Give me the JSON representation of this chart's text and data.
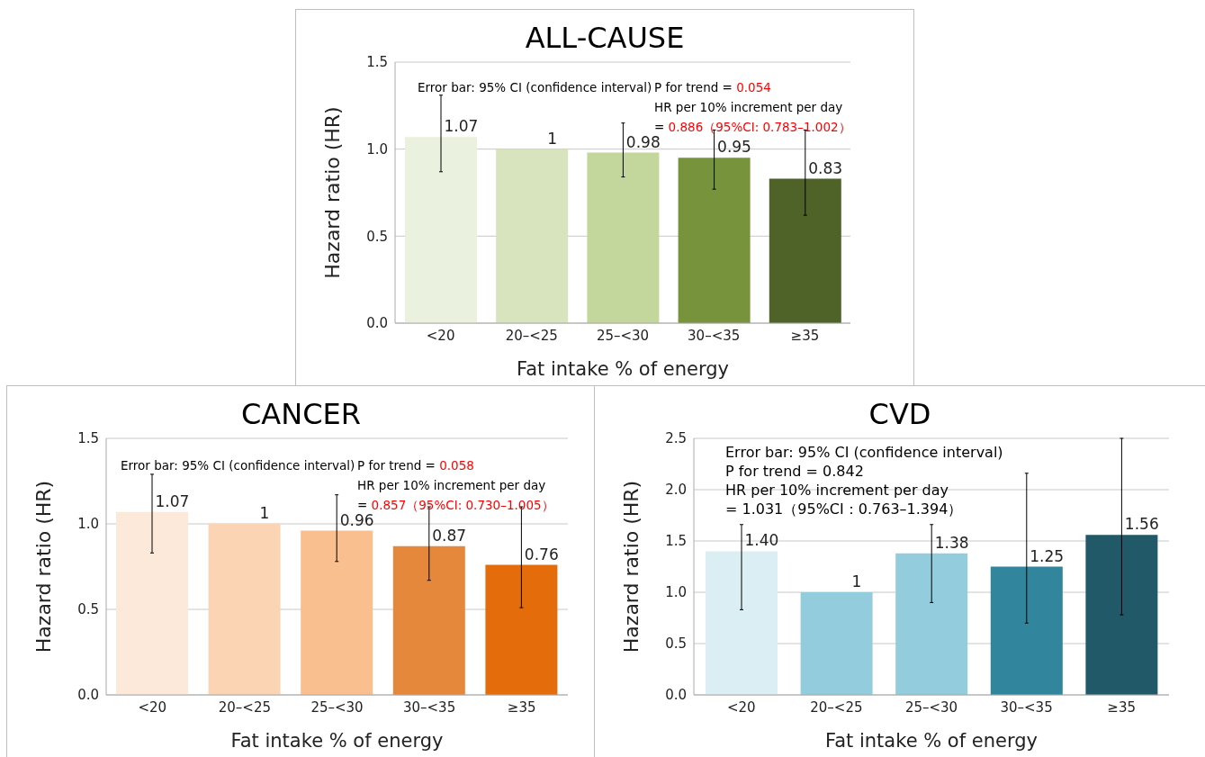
{
  "chart_data": [
    {
      "type": "bar",
      "title": "ALL-CAUSE",
      "xlabel": "Fat intake % of energy",
      "ylabel": "Hazard ratio (HR)",
      "categories": [
        "<20",
        "20–<25",
        "25–<30",
        "30–<35",
        "≥35"
      ],
      "values": [
        1.07,
        1,
        0.98,
        0.95,
        0.83
      ],
      "colors": [
        "#ebf1df",
        "#d7e4bd",
        "#c3d69b",
        "#77933c",
        "#4f6228"
      ],
      "errors": [
        [
          0.87,
          1.31
        ],
        null,
        [
          0.84,
          1.15
        ],
        [
          0.77,
          1.11
        ],
        [
          0.62,
          1.11
        ]
      ],
      "value_labels": [
        "1.07",
        "1",
        "0.98",
        "0.95",
        "0.83"
      ],
      "ylim": [
        0,
        1.5
      ],
      "yticks": [
        {
          "value": 0,
          "label": "0.0"
        },
        {
          "value": 0.5,
          "label": "0.5"
        },
        {
          "value": 1,
          "label": "1.0"
        },
        {
          "value": 1.5,
          "label": "1.5"
        }
      ],
      "grid": "y",
      "legend": false,
      "annotations": [
        "Error bar: 95% CI (confidence interval)",
        "P for trend = 0.054",
        "HR per 10% increment per day",
        "= 0.886（95%CI: 0.783–1.002）"
      ]
    },
    {
      "type": "bar",
      "title": "CANCER",
      "xlabel": "Fat intake % of energy",
      "ylabel": "Hazard ratio (HR)",
      "categories": [
        "<20",
        "20–<25",
        "25–<30",
        "30–<35",
        "≥35"
      ],
      "values": [
        1.07,
        1,
        0.96,
        0.87,
        0.76
      ],
      "colors": [
        "#fde9d9",
        "#fbd4b4",
        "#f9bf8f",
        "#e6883c",
        "#e46c0a"
      ],
      "errors": [
        [
          0.83,
          1.29
        ],
        null,
        [
          0.78,
          1.17
        ],
        [
          0.67,
          1.1
        ],
        [
          0.51,
          1.1
        ]
      ],
      "value_labels": [
        "1.07",
        "1",
        "0.96",
        "0.87",
        "0.76"
      ],
      "ylim": [
        0,
        1.5
      ],
      "yticks": [
        {
          "value": 0,
          "label": "0.0"
        },
        {
          "value": 0.5,
          "label": "0.5"
        },
        {
          "value": 1,
          "label": "1.0"
        },
        {
          "value": 1.5,
          "label": "1.5"
        }
      ],
      "grid": "y",
      "legend": false,
      "annotations": [
        "Error bar: 95% CI (confidence interval)",
        "P for trend = 0.058",
        "HR per 10% increment per day",
        "= 0.857（95%CI: 0.730–1.005）"
      ]
    },
    {
      "type": "bar",
      "title": "CVD",
      "xlabel": "Fat intake % of energy",
      "ylabel": "Hazard ratio (HR)",
      "categories": [
        "<20",
        "20–<25",
        "25–<30",
        "30–<35",
        "≥35"
      ],
      "values": [
        1.4,
        1,
        1.38,
        1.25,
        1.56
      ],
      "colors": [
        "#dbeef4",
        "#93cddd",
        "#93cddd",
        "#31859c",
        "#215968"
      ],
      "errors": [
        [
          0.83,
          1.66
        ],
        null,
        [
          0.9,
          1.66
        ],
        [
          0.7,
          2.16
        ],
        [
          0.78,
          2.5
        ]
      ],
      "value_labels": [
        "1.40",
        "1",
        "1.38",
        "1.25",
        "1.56"
      ],
      "ylim": [
        0,
        2.5
      ],
      "yticks": [
        {
          "value": 0,
          "label": "0.0"
        },
        {
          "value": 0.5,
          "label": "0.5"
        },
        {
          "value": 1,
          "label": "1.0"
        },
        {
          "value": 1.5,
          "label": "1.5"
        },
        {
          "value": 2,
          "label": "2.0"
        },
        {
          "value": 2.5,
          "label": "2.5"
        }
      ],
      "grid": "y",
      "legend": false,
      "annotations": [
        "Error bar: 95% CI (confidence interval)",
        "P for trend = 0.842",
        "HR per 10% increment per day",
        "= 1.031（95%CI：0.763–1.394）"
      ]
    }
  ]
}
